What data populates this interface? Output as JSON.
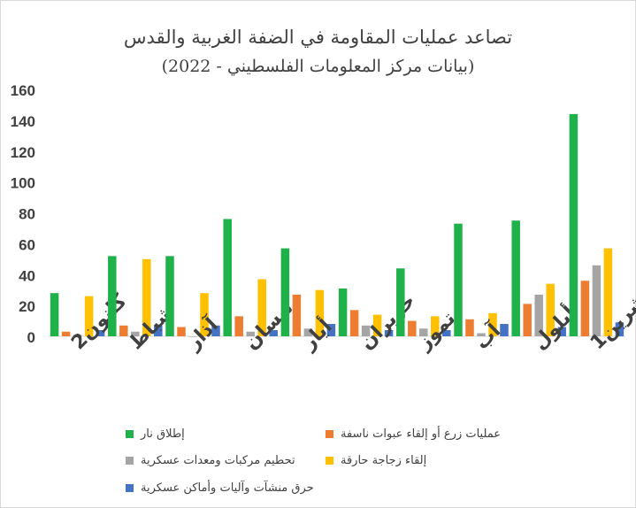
{
  "chart_data": {
    "type": "bar",
    "title": "تصاعد عمليات المقاومة في الضفة الغربية والقدس",
    "subtitle": "(بيانات مركز المعلومات الفلسطيني - 2022)",
    "categories": [
      "كانون2",
      "شباط",
      "آذار",
      "نيسان",
      "أيار",
      "حزيران",
      "تموز",
      "آب",
      "أيلول",
      "تشرين1"
    ],
    "ylim": [
      0,
      160
    ],
    "yticks": [
      0,
      20,
      40,
      60,
      80,
      100,
      120,
      140,
      160
    ],
    "grid": false,
    "legend_position": "bottom",
    "series": [
      {
        "name": "إطلاق نار",
        "color": "#1fb24a",
        "values": [
          28,
          52,
          52,
          76,
          57,
          31,
          44,
          73,
          75,
          144
        ]
      },
      {
        "name": "عمليات زرع أو إلقاء عبوات ناسفة",
        "color": "#ed7d31",
        "values": [
          3,
          7,
          6,
          13,
          27,
          17,
          10,
          11,
          21,
          36
        ]
      },
      {
        "name": "تحطيم مركبات ومعدات عسكرية",
        "color": "#a5a5a5",
        "values": [
          1,
          3,
          0,
          3,
          5,
          7,
          5,
          2,
          27,
          46
        ]
      },
      {
        "name": "إلقاء زجاجة حارقة",
        "color": "#ffc000",
        "values": [
          26,
          50,
          28,
          37,
          30,
          14,
          13,
          15,
          34,
          57
        ]
      },
      {
        "name": "حرق منشآت وآليات وأماكن عسكرية",
        "color": "#4472c4",
        "values": [
          4,
          7,
          7,
          4,
          8,
          4,
          4,
          8,
          6,
          9
        ]
      }
    ]
  }
}
